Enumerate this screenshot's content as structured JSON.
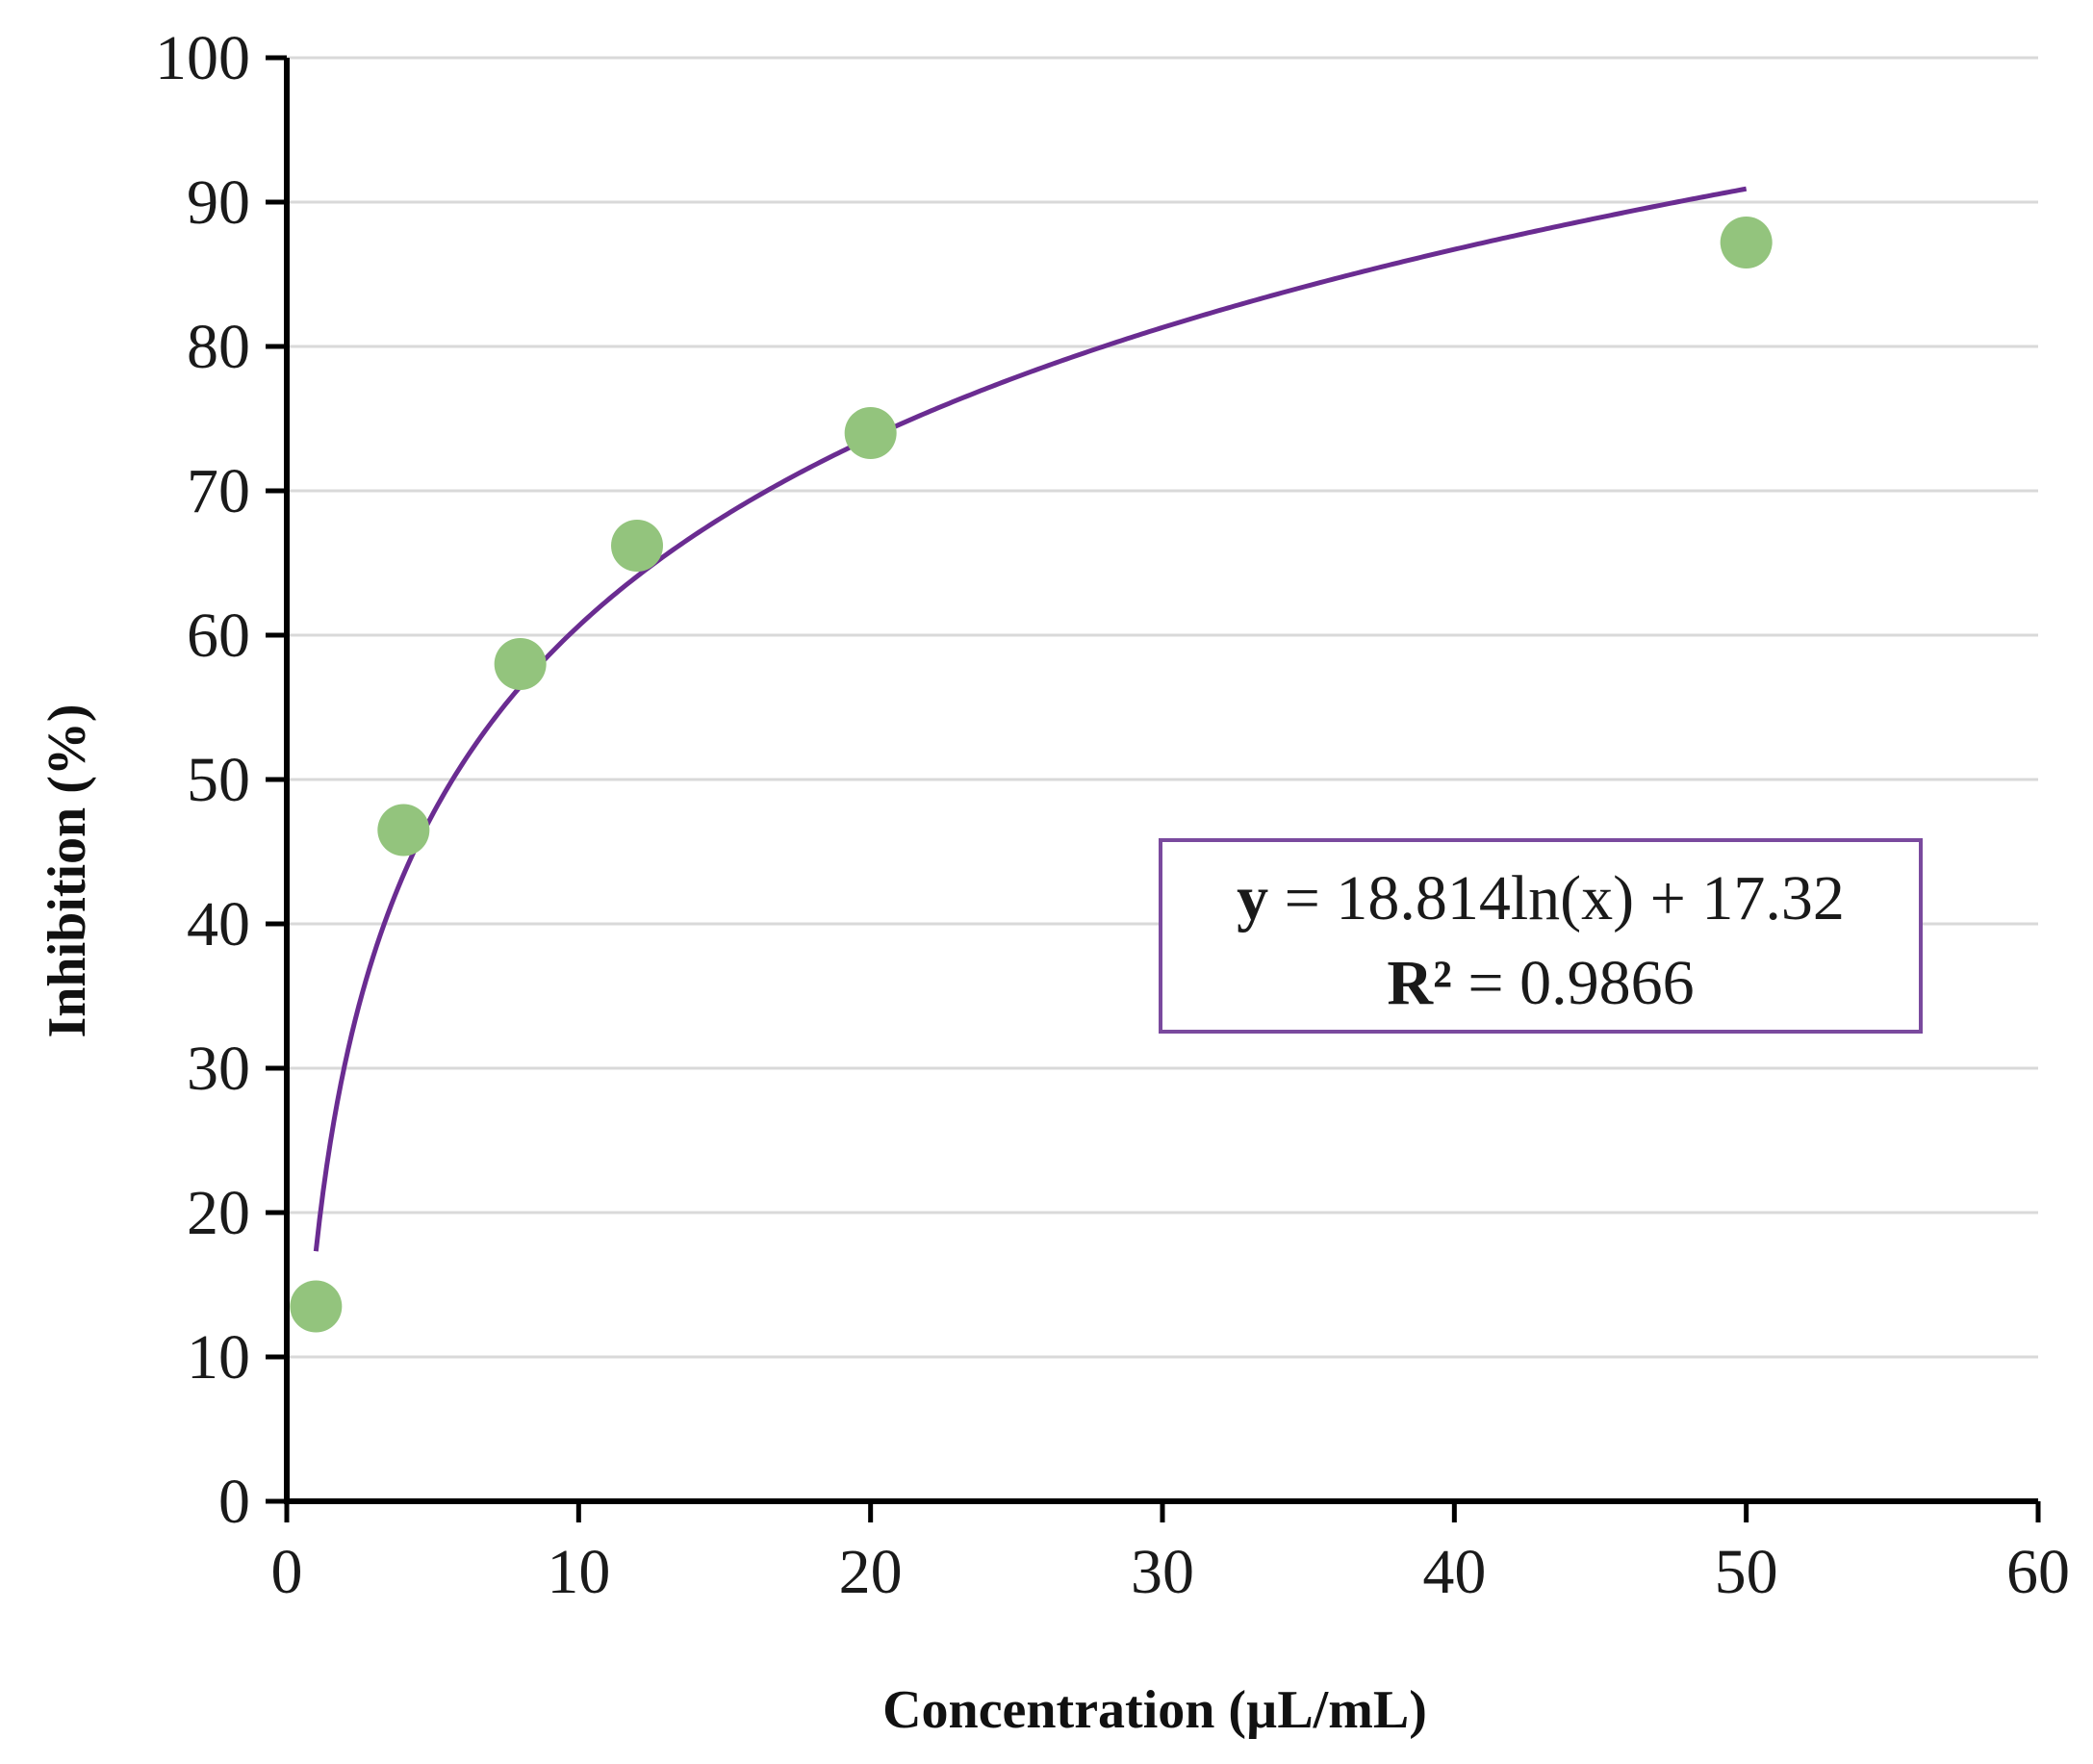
{
  "chart_data": {
    "type": "scatter",
    "title": "",
    "xlabel": "Concentration (µL/mL)",
    "ylabel": "Inhibition (%)",
    "xlim": [
      0,
      60
    ],
    "ylim": [
      0,
      100
    ],
    "x_ticks": [
      0,
      10,
      20,
      30,
      40,
      50,
      60
    ],
    "y_ticks": [
      0,
      10,
      20,
      30,
      40,
      50,
      60,
      70,
      80,
      90,
      100
    ],
    "grid": "horizontal",
    "legend": "none",
    "series": [
      {
        "x": [
          1,
          4,
          8,
          12,
          20,
          50
        ],
        "y": [
          13.5,
          46.5,
          58,
          66.2,
          74,
          87.2
        ],
        "color": "#93c47d"
      }
    ],
    "trendline": {
      "type": "logarithmic",
      "a": 18.814,
      "b": 17.32,
      "x_range": [
        1,
        50
      ],
      "color": "#6a2c91",
      "equation_prefix": "y",
      "equation_rest": " = 18.814ln(x)  + 17.32",
      "r2_prefix": "R²",
      "r2_rest": " = 0.9866",
      "box_color": "#7a4a9e"
    }
  }
}
